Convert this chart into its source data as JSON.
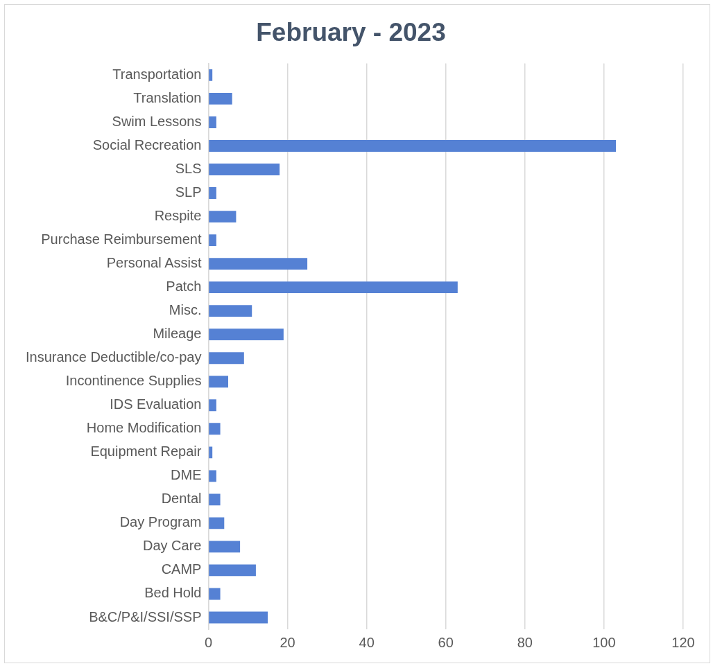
{
  "chart_data": {
    "type": "bar",
    "orientation": "horizontal",
    "title": "February - 2023",
    "categories": [
      "Transportation",
      "Translation",
      "Swim Lessons",
      "Social Recreation",
      "SLS",
      "SLP",
      "Respite",
      "Purchase Reimbursement",
      "Personal Assist",
      "Patch",
      "Misc.",
      "Mileage",
      "Insurance Deductible/co-pay",
      "Incontinence Supplies",
      "IDS Evaluation",
      "Home Modification",
      "Equipment Repair",
      "DME",
      "Dental",
      "Day Program",
      "Day Care",
      "CAMP",
      "Bed Hold",
      "B&C/P&I/SSI/SSP"
    ],
    "values": [
      1,
      6,
      2,
      103,
      18,
      2,
      7,
      2,
      25,
      63,
      11,
      19,
      9,
      5,
      2,
      3,
      1,
      2,
      3,
      4,
      8,
      12,
      3,
      15
    ],
    "color": "#5581d4",
    "xlim": [
      0,
      120
    ],
    "xticks": [
      0,
      20,
      40,
      60,
      80,
      100,
      120
    ],
    "grid": "x",
    "legend": false
  }
}
